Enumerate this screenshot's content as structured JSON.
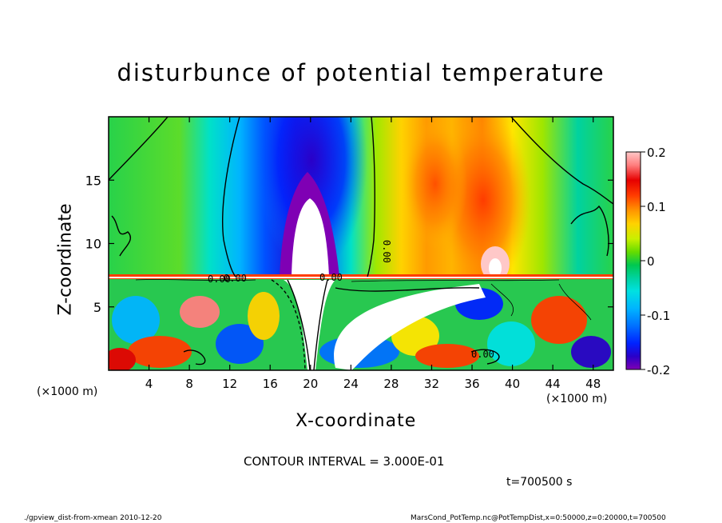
{
  "title": "disturbunce of potential temperature",
  "ylabel": "Z-coordinate",
  "xlabel": "X-coordinate",
  "x_unit_left": "(×1000 m)",
  "x_unit_right": "(×1000 m)",
  "contour_interval": "CONTOUR INTERVAL = 3.000E-01",
  "time_label": "t=700500 s",
  "footer_left": "./gpview_dist-from-xmean   2010-12-20",
  "footer_right": "MarsCond_PotTemp.nc@PotTempDist,x=0:50000,z=0:20000,t=700500",
  "chart_data": {
    "type": "heatmap",
    "title": "disturbunce of potential temperature",
    "xlabel": "X-coordinate",
    "ylabel": "Z-coordinate",
    "xlim": [
      0,
      50
    ],
    "ylim": [
      0,
      20
    ],
    "x_ticks": [
      4,
      8,
      12,
      16,
      20,
      24,
      28,
      32,
      36,
      40,
      44,
      48
    ],
    "y_ticks": [
      5,
      10,
      15
    ],
    "x_tick_labels": [
      "4",
      "8",
      "12",
      "16",
      "20",
      "24",
      "28",
      "32",
      "36",
      "40",
      "44",
      "48"
    ],
    "y_tick_labels": [
      "5",
      "10",
      "15"
    ],
    "colorbar": {
      "range": [
        -0.2,
        0.2
      ],
      "ticks": [
        "0.2",
        "0.1",
        "0",
        "-0.1",
        "-0.2"
      ],
      "tick_values": [
        0.2,
        0.1,
        0,
        -0.1,
        -0.2
      ],
      "colors": [
        "#7f00b4",
        "#2a00c8",
        "#0022ff",
        "#0070ff",
        "#00b4ff",
        "#00e1e1",
        "#00d2a0",
        "#00c850",
        "#28d200",
        "#7fe600",
        "#c8f000",
        "#ffe600",
        "#ffb400",
        "#ff7f00",
        "#ff3c00",
        "#e60000",
        "#ff7f7f",
        "#ffc8c8"
      ]
    },
    "contour_labels": [
      "0.00",
      "0.00",
      "0.00",
      "0.00",
      "0.00"
    ],
    "contour_interval": 0.3,
    "time": 700500
  }
}
